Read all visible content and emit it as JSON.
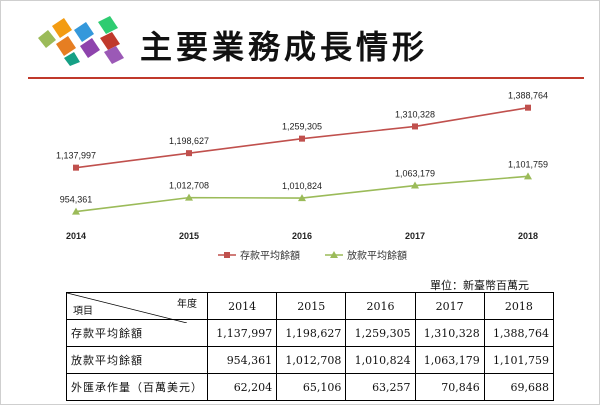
{
  "page": {
    "title": "主要業務成長情形"
  },
  "colors": {
    "accent": "#c0392b",
    "series1": "#c0504d",
    "series2": "#9bbb59"
  },
  "chart_data": {
    "type": "line",
    "title": "",
    "categories": [
      "2014",
      "2015",
      "2016",
      "2017",
      "2018"
    ],
    "series": [
      {
        "name": "存款平均餘額",
        "values": [
          1137997,
          1198627,
          1259305,
          1310328,
          1388764
        ],
        "labels": [
          "1,137,997",
          "1,198,627",
          "1,259,305",
          "1,310,328",
          "1,388,764"
        ],
        "marker": "square"
      },
      {
        "name": "放款平均餘額",
        "values": [
          954361,
          1012708,
          1010824,
          1063179,
          1101759
        ],
        "labels": [
          "954,361",
          "1,012,708",
          "1,010,824",
          "1,063,179",
          "1,101,759"
        ],
        "marker": "triangle"
      }
    ],
    "legend": "bottom-center",
    "grid": false
  },
  "table": {
    "unit_note": "單位：新臺幣百萬元",
    "corner_col": "年度",
    "corner_row": "項目",
    "headers": [
      "2014",
      "2015",
      "2016",
      "2017",
      "2018"
    ],
    "rows": [
      {
        "label": "存款平均餘額",
        "values": [
          "1,137,997",
          "1,198,627",
          "1,259,305",
          "1,310,328",
          "1,388,764"
        ]
      },
      {
        "label": "放款平均餘額",
        "values": [
          "954,361",
          "1,012,708",
          "1,010,824",
          "1,063,179",
          "1,101,759"
        ]
      },
      {
        "label": "外匯承作量（百萬美元）",
        "values": [
          "62,204",
          "65,106",
          "63,257",
          "70,846",
          "69,688"
        ]
      }
    ]
  }
}
